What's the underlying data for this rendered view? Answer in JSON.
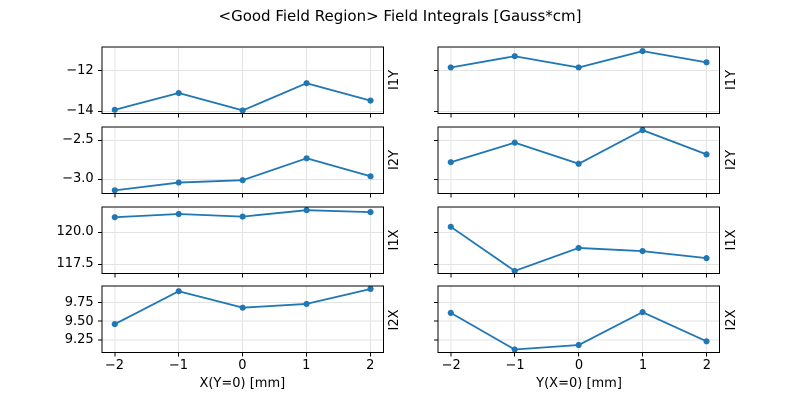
{
  "title": "<Good Field Region> Field Integrals [Gauss*cm]",
  "colors": {
    "line": "#1f77b4",
    "grid": "#e3e3e3",
    "spine": "#000000",
    "background": "#ffffff"
  },
  "chart_data": {
    "type": "line",
    "title": "<Good Field Region> Field Integrals [Gauss*cm]",
    "grid": true,
    "legend": "none",
    "x": [
      -2,
      -1,
      0,
      1,
      2
    ],
    "xticks": [
      -2,
      -1,
      0,
      1,
      2
    ],
    "xtick_labels": [
      "−2",
      "−1",
      "0",
      "1",
      "2"
    ],
    "xlim": [
      -2.2,
      2.2
    ],
    "columns": [
      {
        "id": "left",
        "xlabel": "X(Y=0) [mm]"
      },
      {
        "id": "right",
        "xlabel": "Y(X=0) [mm]"
      }
    ],
    "rows": [
      {
        "label": "I1Y",
        "ylim": [
          -14.1,
          -10.85
        ],
        "yticks": [
          -12,
          -14
        ],
        "ytick_labels": [
          "−12",
          "−14"
        ],
        "series": [
          {
            "column": "left",
            "values": [
              -13.92,
              -13.1,
              -13.95,
              -12.62,
              -13.47
            ]
          },
          {
            "column": "right",
            "values": [
              -11.85,
              -11.3,
              -11.85,
              -11.05,
              -11.6
            ]
          }
        ]
      },
      {
        "label": "I2Y",
        "ylim": [
          -3.18,
          -2.33
        ],
        "yticks": [
          -2.5,
          -3.0
        ],
        "ytick_labels": [
          "−2.5",
          "−3.0"
        ],
        "series": [
          {
            "column": "left",
            "values": [
              -3.14,
              -3.04,
              -3.01,
              -2.73,
              -2.96
            ]
          },
          {
            "column": "right",
            "values": [
              -2.78,
              -2.53,
              -2.8,
              -2.37,
              -2.68
            ]
          }
        ]
      },
      {
        "label": "I1X",
        "ylim": [
          116.8,
          122.0
        ],
        "yticks": [
          120.0,
          117.5
        ],
        "ytick_labels": [
          "120.0",
          "117.5"
        ],
        "series": [
          {
            "column": "left",
            "values": [
              121.2,
              121.45,
              121.25,
              121.75,
              121.6
            ]
          },
          {
            "column": "right",
            "values": [
              120.45,
              117.0,
              118.8,
              118.55,
              118.0
            ]
          }
        ]
      },
      {
        "label": "I2X",
        "ylim": [
          9.08,
          9.97
        ],
        "yticks": [
          9.75,
          9.5,
          9.25
        ],
        "ytick_labels": [
          "9.75",
          "9.50",
          "9.25"
        ],
        "series": [
          {
            "column": "left",
            "values": [
              9.46,
              9.9,
              9.68,
              9.73,
              9.93
            ]
          },
          {
            "column": "right",
            "values": [
              9.61,
              9.12,
              9.18,
              9.62,
              9.23
            ]
          }
        ]
      }
    ]
  }
}
